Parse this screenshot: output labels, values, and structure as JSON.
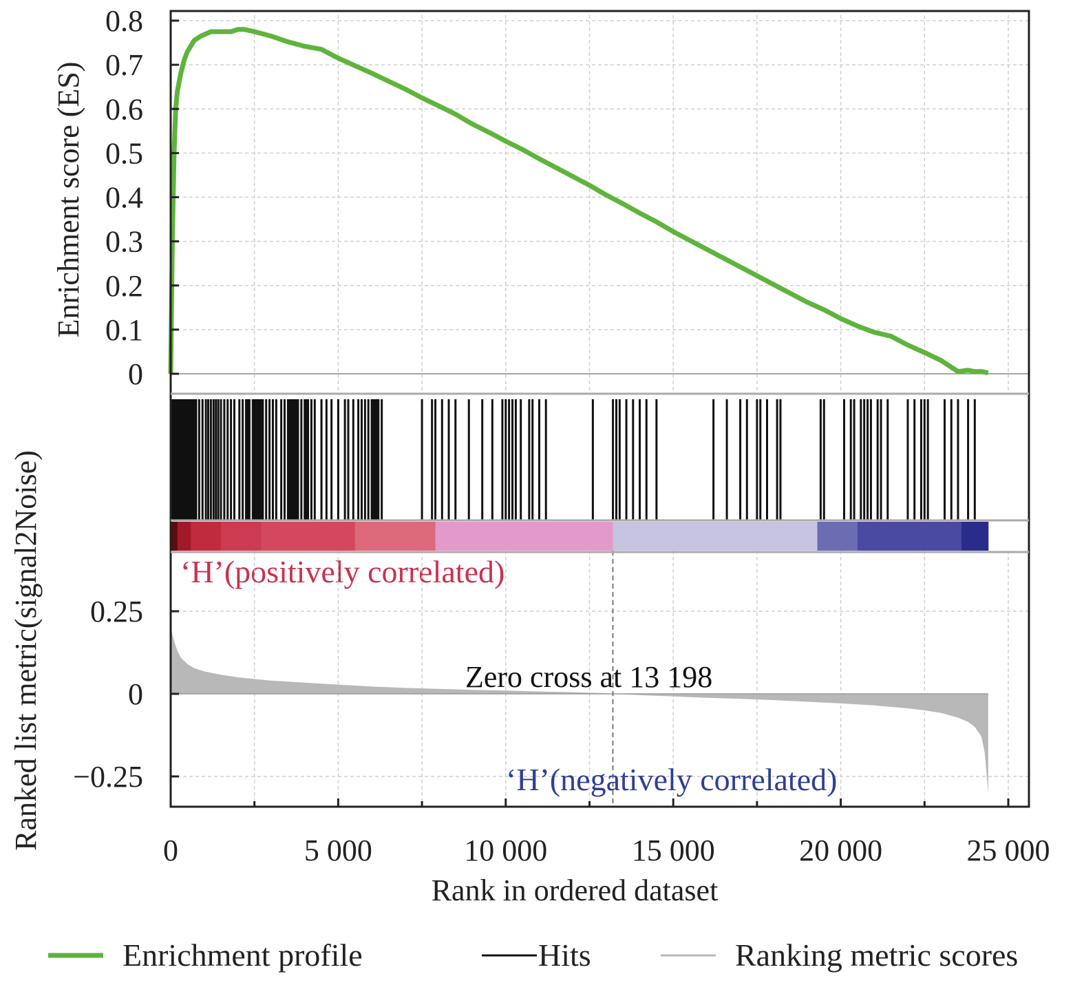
{
  "chart_data": [
    {
      "type": "line",
      "panel": "enrichment",
      "ylabel": "Enrichment score (ES)",
      "ylim": [
        0,
        0.8
      ],
      "xlim": [
        0,
        25000
      ],
      "yticks": [
        0,
        0.1,
        0.2,
        0.3,
        0.4,
        0.5,
        0.6,
        0.7,
        0.8
      ],
      "ytick_labels": [
        "0",
        "0.1",
        "0.2",
        "0.3",
        "0.4",
        "0.5",
        "0.6",
        "0.7",
        "0.8"
      ],
      "grid": true,
      "series": [
        {
          "name": "Enrichment profile",
          "color": "#5fb43c",
          "x": [
            0,
            50,
            100,
            150,
            200,
            300,
            400,
            500,
            700,
            900,
            1200,
            1500,
            1800,
            2000,
            2200,
            2500,
            3000,
            3500,
            4000,
            4500,
            5000,
            5500,
            6000,
            6500,
            7000,
            7500,
            8000,
            8500,
            9000,
            9500,
            10000,
            10500,
            11000,
            11500,
            12000,
            12500,
            13000,
            13500,
            14000,
            14500,
            15000,
            15500,
            16000,
            16500,
            17000,
            17500,
            18000,
            18500,
            19000,
            19500,
            20000,
            20500,
            21000,
            21500,
            22000,
            22500,
            23000,
            23300,
            23500,
            23800,
            24000,
            24200,
            24400
          ],
          "values": [
            0,
            0.3,
            0.5,
            0.6,
            0.64,
            0.68,
            0.71,
            0.73,
            0.755,
            0.765,
            0.775,
            0.775,
            0.775,
            0.78,
            0.78,
            0.775,
            0.765,
            0.752,
            0.742,
            0.735,
            0.715,
            0.698,
            0.681,
            0.663,
            0.645,
            0.625,
            0.607,
            0.588,
            0.566,
            0.547,
            0.527,
            0.508,
            0.487,
            0.467,
            0.447,
            0.427,
            0.405,
            0.385,
            0.364,
            0.344,
            0.322,
            0.302,
            0.282,
            0.262,
            0.242,
            0.222,
            0.202,
            0.182,
            0.162,
            0.145,
            0.125,
            0.108,
            0.094,
            0.085,
            0.065,
            0.048,
            0.03,
            0.015,
            0.005,
            0.008,
            0.005,
            0.005,
            0.002
          ]
        }
      ]
    },
    {
      "type": "scatter",
      "panel": "hits",
      "series": [
        {
          "name": "Hits",
          "color": "#111111",
          "x": [
            0,
            30,
            60,
            90,
            120,
            150,
            180,
            210,
            240,
            270,
            300,
            330,
            360,
            390,
            420,
            450,
            480,
            510,
            540,
            570,
            600,
            640,
            680,
            720,
            760,
            850,
            950,
            1050,
            1120,
            1200,
            1280,
            1350,
            1420,
            1500,
            1600,
            1700,
            1800,
            1900,
            2050,
            2150,
            2250,
            2300,
            2350,
            2450,
            2500,
            2550,
            2600,
            2650,
            2700,
            2750,
            2850,
            2950,
            3050,
            3150,
            3300,
            3400,
            3500,
            3550,
            3600,
            3650,
            3700,
            3750,
            3800,
            3900,
            4000,
            4050,
            4100,
            4200,
            4300,
            4500,
            4650,
            4800,
            5000,
            5200,
            5300,
            5450,
            5600,
            5700,
            5800,
            5900,
            6000,
            6050,
            6100,
            6150,
            6200,
            6300,
            7500,
            7800,
            7900,
            8100,
            8300,
            8500,
            8900,
            9300,
            9600,
            9900,
            10000,
            10100,
            10200,
            10300,
            10450,
            10700,
            10800,
            11000,
            11200,
            12600,
            13200,
            13300,
            13400,
            13600,
            13800,
            14000,
            14200,
            14500,
            16200,
            16600,
            17000,
            17200,
            17500,
            17600,
            17800,
            18100,
            18200,
            19400,
            19500,
            20100,
            20300,
            20400,
            20600,
            20700,
            20800,
            20900,
            21100,
            21200,
            21400,
            22000,
            22200,
            22400,
            22500,
            22600,
            23100,
            23300,
            23500,
            23800,
            24000
          ]
        }
      ]
    },
    {
      "type": "heatmap",
      "panel": "correlation-bar",
      "segments": [
        {
          "from": 0,
          "to": 200,
          "color": "#5a0c10"
        },
        {
          "from": 200,
          "to": 600,
          "color": "#a21a2a"
        },
        {
          "from": 600,
          "to": 1500,
          "color": "#c02c3e"
        },
        {
          "from": 1500,
          "to": 2700,
          "color": "#cc3b50"
        },
        {
          "from": 2700,
          "to": 5500,
          "color": "#d4485e"
        },
        {
          "from": 5500,
          "to": 7900,
          "color": "#dc6a7a"
        },
        {
          "from": 7900,
          "to": 13198,
          "color": "#e39acb"
        },
        {
          "from": 13198,
          "to": 19300,
          "color": "#c6c4e0"
        },
        {
          "from": 19300,
          "to": 20500,
          "color": "#6c6cb2"
        },
        {
          "from": 20500,
          "to": 23600,
          "color": "#4b4aa2"
        },
        {
          "from": 23600,
          "to": 24400,
          "color": "#2a2c8c"
        }
      ],
      "annotations": [
        {
          "text": "‘H’(positively correlated)",
          "color": "#c9324f"
        }
      ]
    },
    {
      "type": "area",
      "panel": "ranked-metric",
      "ylabel": "Ranked list metric(signal2Noise)",
      "xlabel": "Rank in ordered dataset",
      "ylim": [
        -0.3,
        0.3
      ],
      "xlim": [
        0,
        25000
      ],
      "yticks": [
        -0.25,
        0,
        0.25
      ],
      "ytick_labels": [
        "−0.25",
        "0",
        "0.25"
      ],
      "xticks": [
        0,
        5000,
        10000,
        15000,
        20000,
        25000
      ],
      "xtick_labels": [
        "0",
        "5 000",
        "10 000",
        "15 000",
        "20 000",
        "25 000"
      ],
      "grid": true,
      "zero_cross": 13198,
      "series": [
        {
          "name": "Ranking metric scores",
          "color": "#b8b8b8",
          "x": [
            0,
            50,
            100,
            200,
            300,
            500,
            700,
            1000,
            1500,
            2000,
            3000,
            4000,
            5000,
            6000,
            7000,
            8000,
            9000,
            10000,
            11000,
            12000,
            13000,
            13198,
            14000,
            15000,
            16000,
            17000,
            18000,
            19000,
            20000,
            21000,
            22000,
            22500,
            23000,
            23500,
            23800,
            24000,
            24200,
            24300,
            24400
          ],
          "values": [
            0.21,
            0.18,
            0.16,
            0.13,
            0.11,
            0.09,
            0.078,
            0.068,
            0.058,
            0.05,
            0.04,
            0.034,
            0.028,
            0.022,
            0.018,
            0.015,
            0.012,
            0.01,
            0.007,
            0.005,
            0.002,
            0,
            -0.004,
            -0.008,
            -0.012,
            -0.015,
            -0.019,
            -0.024,
            -0.029,
            -0.035,
            -0.044,
            -0.05,
            -0.058,
            -0.072,
            -0.085,
            -0.1,
            -0.13,
            -0.18,
            -0.3
          ]
        }
      ],
      "annotations": [
        {
          "text": "Zero cross at 13 198",
          "color": "#111111"
        },
        {
          "text": "‘H’(negatively correlated)",
          "color": "#2f3f94"
        }
      ]
    }
  ],
  "legend": {
    "placement": "bottom",
    "items": [
      {
        "label": "Enrichment profile",
        "color": "#5fb43c"
      },
      {
        "label": "Hits",
        "color": "#111111"
      },
      {
        "label": "Ranking metric scores",
        "color": "#b8b8b8"
      }
    ]
  }
}
